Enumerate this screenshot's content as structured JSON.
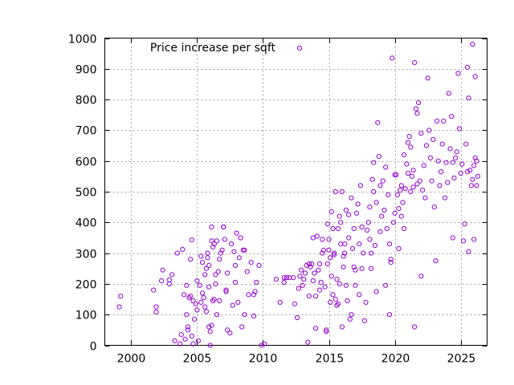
{
  "chart_data": {
    "type": "scatter",
    "title": "",
    "xlabel": "",
    "ylabel": "",
    "xlim": [
      1998,
      2027
    ],
    "ylim": [
      0,
      1000
    ],
    "x_ticks": [
      2000,
      2005,
      2010,
      2015,
      2020,
      2025
    ],
    "y_ticks": [
      0,
      100,
      200,
      300,
      400,
      500,
      600,
      700,
      800,
      900,
      1000
    ],
    "grid": true,
    "legend": {
      "position": "top-left-inside"
    },
    "series": [
      {
        "name": "Price increase per sqft",
        "color": "#9400d3",
        "marker": "circle",
        "points": [
          [
            1999.2,
            160
          ],
          [
            1999.1,
            125
          ],
          [
            2001.7,
            180
          ],
          [
            2001.9,
            125
          ],
          [
            2001.9,
            108
          ],
          [
            2002.3,
            210
          ],
          [
            2002.4,
            245
          ],
          [
            2002.9,
            200
          ],
          [
            2002.9,
            213
          ],
          [
            2003.1,
            230
          ],
          [
            2003.3,
            15
          ],
          [
            2003.5,
            300
          ],
          [
            2003.7,
            5
          ],
          [
            2003.8,
            35
          ],
          [
            2003.9,
            312
          ],
          [
            2004.0,
            165
          ],
          [
            2004.1,
            20
          ],
          [
            2004.2,
            100
          ],
          [
            2004.2,
            195
          ],
          [
            2004.3,
            60
          ],
          [
            2004.3,
            50
          ],
          [
            2004.4,
            155
          ],
          [
            2004.5,
            160
          ],
          [
            2004.5,
            280
          ],
          [
            2004.6,
            343
          ],
          [
            2004.6,
            30
          ],
          [
            2004.7,
            145
          ],
          [
            2004.7,
            5
          ],
          [
            2004.8,
            85
          ],
          [
            2004.9,
            135
          ],
          [
            2005.0,
            210
          ],
          [
            2005.0,
            115
          ],
          [
            2005.1,
            15
          ],
          [
            2005.2,
            195
          ],
          [
            2005.3,
            290
          ],
          [
            2005.3,
            140
          ],
          [
            2005.4,
            170
          ],
          [
            2005.4,
            270
          ],
          [
            2005.5,
            155
          ],
          [
            2005.6,
            125
          ],
          [
            2005.6,
            230
          ],
          [
            2005.7,
            110
          ],
          [
            2005.7,
            250
          ],
          [
            2005.8,
            300
          ],
          [
            2005.8,
            285
          ],
          [
            2005.9,
            60
          ],
          [
            2005.9,
            190
          ],
          [
            2005.9,
            260
          ],
          [
            2006.0,
            45
          ],
          [
            2006.0,
            0
          ],
          [
            2006.1,
            385
          ],
          [
            2006.1,
            340
          ],
          [
            2006.1,
            65
          ],
          [
            2006.2,
            320
          ],
          [
            2006.2,
            145
          ],
          [
            2006.3,
            330
          ],
          [
            2006.3,
            150
          ],
          [
            2006.4,
            230
          ],
          [
            2006.4,
            200
          ],
          [
            2006.5,
            100
          ],
          [
            2006.5,
            340
          ],
          [
            2006.6,
            240
          ],
          [
            2006.7,
            280
          ],
          [
            2006.7,
            145
          ],
          [
            2006.8,
            300
          ],
          [
            2006.9,
            310
          ],
          [
            2007.0,
            385
          ],
          [
            2007.0,
            385
          ],
          [
            2007.1,
            345
          ],
          [
            2007.2,
            175
          ],
          [
            2007.2,
            180
          ],
          [
            2007.3,
            235
          ],
          [
            2007.3,
            50
          ],
          [
            2007.5,
            40
          ],
          [
            2007.6,
            330
          ],
          [
            2007.7,
            130
          ],
          [
            2007.8,
            305
          ],
          [
            2007.9,
            260
          ],
          [
            2007.9,
            205
          ],
          [
            2008.0,
            365
          ],
          [
            2008.1,
            140
          ],
          [
            2008.2,
            285
          ],
          [
            2008.3,
            350
          ],
          [
            2008.4,
            60
          ],
          [
            2008.5,
            310
          ],
          [
            2008.6,
            310
          ],
          [
            2008.6,
            100
          ],
          [
            2008.8,
            240
          ],
          [
            2008.9,
            165
          ],
          [
            2009.1,
            270
          ],
          [
            2009.3,
            165
          ],
          [
            2009.3,
            95
          ],
          [
            2009.4,
            175
          ],
          [
            2009.5,
            205
          ],
          [
            2009.7,
            260
          ],
          [
            2009.9,
            0
          ],
          [
            2010.1,
            5
          ],
          [
            2011.0,
            215
          ],
          [
            2011.3,
            140
          ],
          [
            2011.6,
            205
          ],
          [
            2011.6,
            220
          ],
          [
            2011.8,
            220
          ],
          [
            2012.0,
            220
          ],
          [
            2012.3,
            220
          ],
          [
            2012.4,
            135
          ],
          [
            2012.6,
            90
          ],
          [
            2012.7,
            185
          ],
          [
            2012.8,
            225
          ],
          [
            2012.9,
            245
          ],
          [
            2013.0,
            195
          ],
          [
            2013.1,
            215
          ],
          [
            2013.2,
            235
          ],
          [
            2013.3,
            260
          ],
          [
            2013.4,
            10
          ],
          [
            2013.5,
            160
          ],
          [
            2013.5,
            265
          ],
          [
            2013.6,
            255
          ],
          [
            2013.7,
            265
          ],
          [
            2013.8,
            350
          ],
          [
            2013.8,
            210
          ],
          [
            2013.9,
            235
          ],
          [
            2014.0,
            160
          ],
          [
            2014.0,
            55
          ],
          [
            2014.1,
            355
          ],
          [
            2014.2,
            245
          ],
          [
            2014.3,
            265
          ],
          [
            2014.3,
            180
          ],
          [
            2014.4,
            205
          ],
          [
            2014.5,
            300
          ],
          [
            2014.5,
            345
          ],
          [
            2014.6,
            310
          ],
          [
            2014.7,
            190
          ],
          [
            2014.8,
            50
          ],
          [
            2014.8,
            45
          ],
          [
            2014.9,
            395
          ],
          [
            2014.9,
            265
          ],
          [
            2015.0,
            310
          ],
          [
            2015.0,
            345
          ],
          [
            2015.1,
            285
          ],
          [
            2015.1,
            140
          ],
          [
            2015.2,
            225
          ],
          [
            2015.2,
            435
          ],
          [
            2015.3,
            380
          ],
          [
            2015.3,
            165
          ],
          [
            2015.4,
            295
          ],
          [
            2015.4,
            300
          ],
          [
            2015.5,
            500
          ],
          [
            2015.5,
            150
          ],
          [
            2015.6,
            215
          ],
          [
            2015.6,
            130
          ],
          [
            2015.7,
            135
          ],
          [
            2015.7,
            380
          ],
          [
            2015.8,
            200
          ],
          [
            2015.8,
            420
          ],
          [
            2015.9,
            330
          ],
          [
            2015.9,
            400
          ],
          [
            2016.0,
            500
          ],
          [
            2016.0,
            60
          ],
          [
            2016.1,
            255
          ],
          [
            2016.1,
            290
          ],
          [
            2016.2,
            300
          ],
          [
            2016.2,
            330
          ],
          [
            2016.3,
            440
          ],
          [
            2016.3,
            195
          ],
          [
            2016.4,
            145
          ],
          [
            2016.5,
            425
          ],
          [
            2016.5,
            350
          ],
          [
            2016.6,
            85
          ],
          [
            2016.7,
            480
          ],
          [
            2016.7,
            100
          ],
          [
            2016.8,
            315
          ],
          [
            2016.9,
            255
          ],
          [
            2016.9,
            380
          ],
          [
            2017.0,
            245
          ],
          [
            2017.0,
            195
          ],
          [
            2017.1,
            430
          ],
          [
            2017.2,
            460
          ],
          [
            2017.3,
            330
          ],
          [
            2017.3,
            165
          ],
          [
            2017.4,
            520
          ],
          [
            2017.5,
            385
          ],
          [
            2017.5,
            250
          ],
          [
            2017.6,
            300
          ],
          [
            2017.7,
            80
          ],
          [
            2017.8,
            140
          ],
          [
            2017.9,
            375
          ],
          [
            2018.0,
            400
          ],
          [
            2018.1,
            450
          ],
          [
            2018.1,
            345
          ],
          [
            2018.2,
            300
          ],
          [
            2018.2,
            250
          ],
          [
            2018.3,
            540
          ],
          [
            2018.4,
            595
          ],
          [
            2018.4,
            500
          ],
          [
            2018.5,
            325
          ],
          [
            2018.6,
            175
          ],
          [
            2018.6,
            465
          ],
          [
            2018.7,
            725
          ],
          [
            2018.8,
            615
          ],
          [
            2018.9,
            370
          ],
          [
            2018.9,
            520
          ],
          [
            2019.0,
            420
          ],
          [
            2019.1,
            535
          ],
          [
            2019.2,
            440
          ],
          [
            2019.3,
            580
          ],
          [
            2019.3,
            195
          ],
          [
            2019.4,
            380
          ],
          [
            2019.5,
            490
          ],
          [
            2019.6,
            330
          ],
          [
            2019.6,
            100
          ],
          [
            2019.7,
            280
          ],
          [
            2019.7,
            270
          ],
          [
            2019.8,
            935
          ],
          [
            2019.9,
            400
          ],
          [
            2020.0,
            555
          ],
          [
            2020.0,
            430
          ],
          [
            2020.1,
            555
          ],
          [
            2020.2,
            490
          ],
          [
            2020.3,
            315
          ],
          [
            2020.3,
            445
          ],
          [
            2020.4,
            505
          ],
          [
            2020.5,
            520
          ],
          [
            2020.5,
            420
          ],
          [
            2020.6,
            465
          ],
          [
            2020.7,
            620
          ],
          [
            2020.7,
            380
          ],
          [
            2020.8,
            510
          ],
          [
            2020.9,
            590
          ],
          [
            2021.0,
            560
          ],
          [
            2021.0,
            660
          ],
          [
            2021.1,
            680
          ],
          [
            2021.2,
            500
          ],
          [
            2021.2,
            645
          ],
          [
            2021.3,
            550
          ],
          [
            2021.4,
            570
          ],
          [
            2021.4,
            515
          ],
          [
            2021.5,
            60
          ],
          [
            2021.5,
            920
          ],
          [
            2021.6,
            770
          ],
          [
            2021.7,
            525
          ],
          [
            2021.7,
            755
          ],
          [
            2021.8,
            790
          ],
          [
            2021.9,
            535
          ],
          [
            2022.0,
            690
          ],
          [
            2022.0,
            225
          ],
          [
            2022.1,
            505
          ],
          [
            2022.2,
            585
          ],
          [
            2022.3,
            480
          ],
          [
            2022.4,
            650
          ],
          [
            2022.5,
            870
          ],
          [
            2022.6,
            700
          ],
          [
            2022.7,
            610
          ],
          [
            2022.8,
            535
          ],
          [
            2022.9,
            670
          ],
          [
            2023.0,
            450
          ],
          [
            2023.1,
            275
          ],
          [
            2023.2,
            730
          ],
          [
            2023.3,
            600
          ],
          [
            2023.4,
            520
          ],
          [
            2023.5,
            565
          ],
          [
            2023.6,
            655
          ],
          [
            2023.7,
            730
          ],
          [
            2023.8,
            480
          ],
          [
            2023.9,
            595
          ],
          [
            2024.0,
            530
          ],
          [
            2024.1,
            820
          ],
          [
            2024.2,
            640
          ],
          [
            2024.3,
            745
          ],
          [
            2024.4,
            595
          ],
          [
            2024.4,
            350
          ],
          [
            2024.5,
            545
          ],
          [
            2024.6,
            610
          ],
          [
            2024.7,
            630
          ],
          [
            2024.8,
            885
          ],
          [
            2024.9,
            705
          ],
          [
            2025.0,
            560
          ],
          [
            2025.1,
            590
          ],
          [
            2025.2,
            340
          ],
          [
            2025.3,
            395
          ],
          [
            2025.4,
            655
          ],
          [
            2025.5,
            905
          ],
          [
            2025.5,
            565
          ],
          [
            2025.6,
            805
          ],
          [
            2025.6,
            305
          ],
          [
            2025.7,
            570
          ],
          [
            2025.8,
            520
          ],
          [
            2025.9,
            980
          ],
          [
            2025.9,
            540
          ],
          [
            2026.0,
            585
          ],
          [
            2026.0,
            345
          ],
          [
            2026.1,
            875
          ],
          [
            2026.1,
            610
          ],
          [
            2026.2,
            600
          ],
          [
            2026.2,
            520
          ],
          [
            2026.3,
            550
          ]
        ]
      }
    ]
  }
}
